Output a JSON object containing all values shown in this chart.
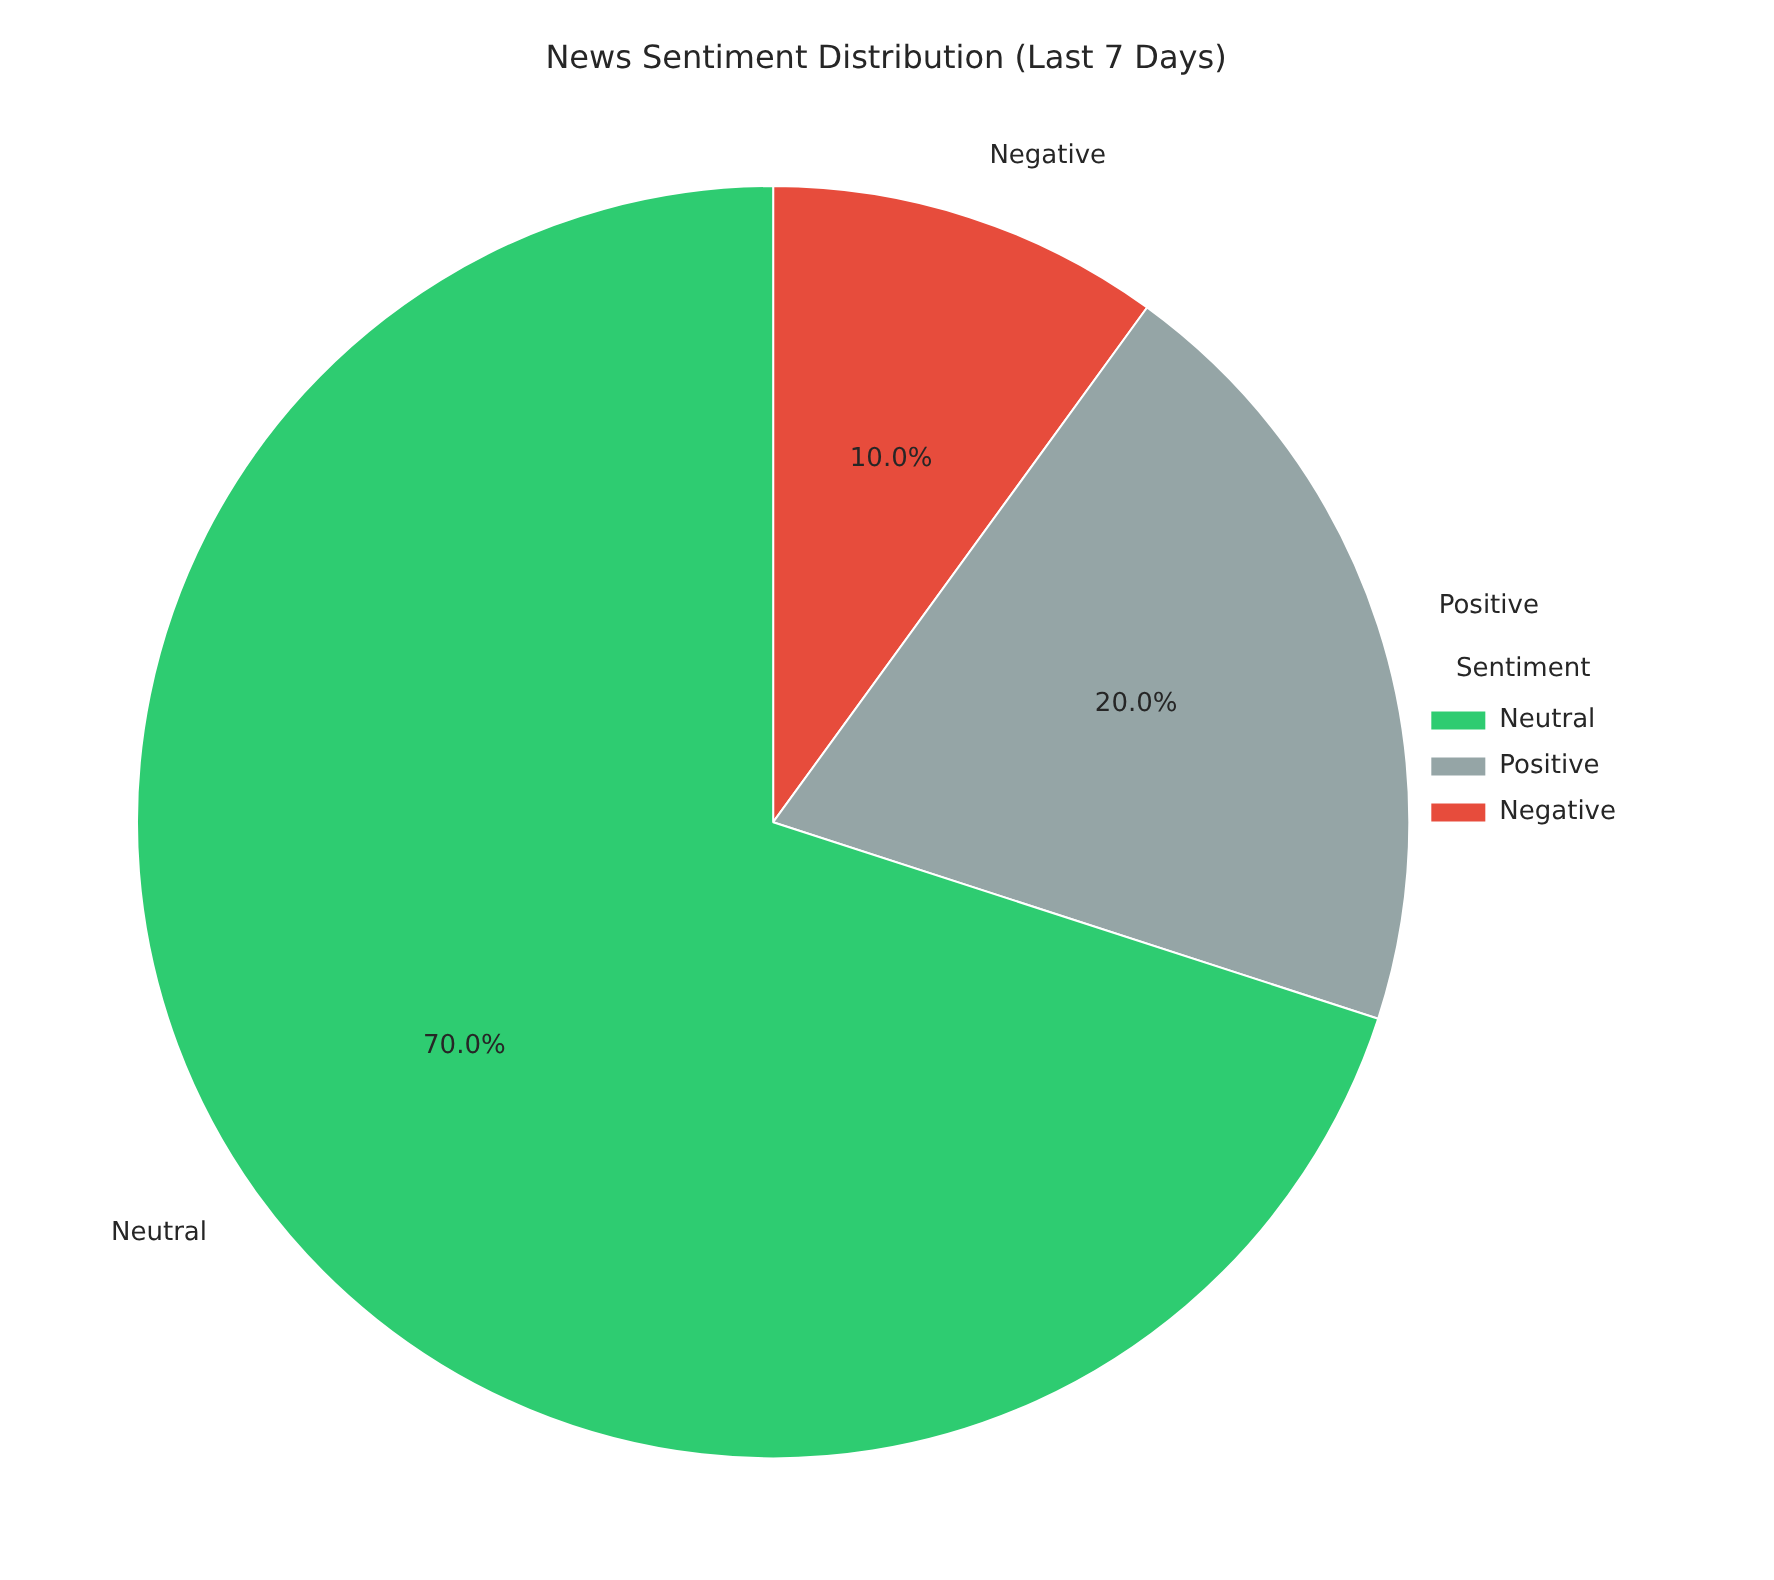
{
  "chart_data": {
    "type": "pie",
    "title": "News Sentiment Distribution (Last 7 Days)",
    "legend_title": "Sentiment",
    "legend": "right",
    "categories": [
      "Neutral",
      "Positive",
      "Negative"
    ],
    "values": [
      70,
      20,
      10
    ],
    "colors": [
      "#2ecc71",
      "#95a5a6",
      "#e74c3c"
    ],
    "value_labels": [
      "70.0%",
      "20.0%",
      "10.0%"
    ]
  }
}
